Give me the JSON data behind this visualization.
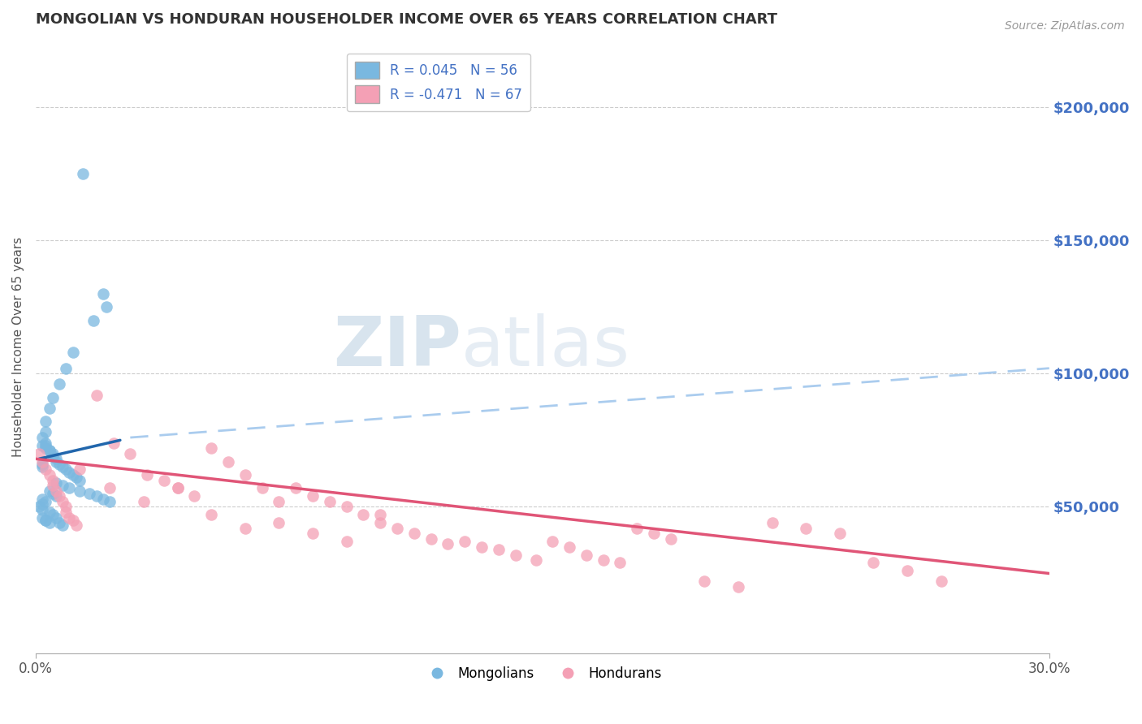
{
  "title": "MONGOLIAN VS HONDURAN HOUSEHOLDER INCOME OVER 65 YEARS CORRELATION CHART",
  "source": "Source: ZipAtlas.com",
  "ylabel": "Householder Income Over 65 years",
  "xlim": [
    0.0,
    0.3
  ],
  "ylim": [
    -5000,
    225000
  ],
  "ytick_values": [
    50000,
    100000,
    150000,
    200000
  ],
  "ytick_labels": [
    "$50,000",
    "$100,000",
    "$150,000",
    "$200,000"
  ],
  "mongolian_color": "#7ab8e0",
  "honduran_color": "#f4a0b5",
  "mongolian_line_color": "#2166ac",
  "honduran_line_color": "#e05577",
  "dashed_line_color": "#aaccee",
  "legend_text_color": "#4472c4",
  "title_color": "#333333",
  "right_axis_color": "#4472c4",
  "watermark_color": "#ccd9e8",
  "mongolian_R": 0.045,
  "mongolian_N": 56,
  "honduran_R": -0.471,
  "honduran_N": 67,
  "mongolian_scatter_x": [
    0.014,
    0.02,
    0.021,
    0.017,
    0.011,
    0.009,
    0.007,
    0.005,
    0.004,
    0.003,
    0.003,
    0.002,
    0.003,
    0.003,
    0.004,
    0.005,
    0.006,
    0.006,
    0.007,
    0.008,
    0.009,
    0.01,
    0.011,
    0.012,
    0.013,
    0.004,
    0.005,
    0.006,
    0.002,
    0.003,
    0.002,
    0.001,
    0.002,
    0.004,
    0.005,
    0.006,
    0.003,
    0.007,
    0.008,
    0.002,
    0.003,
    0.004,
    0.005,
    0.002,
    0.002,
    0.006,
    0.008,
    0.01,
    0.013,
    0.016,
    0.018,
    0.02,
    0.022,
    0.002,
    0.003,
    0.004
  ],
  "mongolian_scatter_y": [
    175000,
    130000,
    125000,
    120000,
    108000,
    102000,
    96000,
    91000,
    87000,
    82000,
    78000,
    76000,
    74000,
    73000,
    71000,
    69000,
    68000,
    67000,
    66000,
    65000,
    64000,
    63000,
    62000,
    61000,
    60000,
    56000,
    55000,
    54000,
    53000,
    52000,
    51000,
    50000,
    49000,
    48000,
    47000,
    46000,
    45000,
    44000,
    43000,
    73000,
    72000,
    71000,
    70000,
    66000,
    65000,
    59000,
    58000,
    57000,
    56000,
    55000,
    54000,
    53000,
    52000,
    46000,
    45000,
    44000
  ],
  "honduran_scatter_x": [
    0.001,
    0.002,
    0.003,
    0.004,
    0.005,
    0.005,
    0.006,
    0.007,
    0.008,
    0.009,
    0.009,
    0.01,
    0.011,
    0.012,
    0.018,
    0.023,
    0.028,
    0.033,
    0.038,
    0.042,
    0.047,
    0.052,
    0.057,
    0.062,
    0.067,
    0.072,
    0.077,
    0.082,
    0.087,
    0.092,
    0.097,
    0.102,
    0.107,
    0.112,
    0.117,
    0.122,
    0.127,
    0.132,
    0.137,
    0.142,
    0.148,
    0.153,
    0.158,
    0.163,
    0.168,
    0.173,
    0.178,
    0.183,
    0.188,
    0.198,
    0.208,
    0.218,
    0.228,
    0.238,
    0.248,
    0.258,
    0.268,
    0.013,
    0.022,
    0.032,
    0.042,
    0.052,
    0.062,
    0.072,
    0.082,
    0.092,
    0.102
  ],
  "honduran_scatter_y": [
    70000,
    67000,
    64000,
    62000,
    60000,
    58000,
    56000,
    54000,
    52000,
    50000,
    48000,
    46000,
    45000,
    43000,
    92000,
    74000,
    70000,
    62000,
    60000,
    57000,
    54000,
    72000,
    67000,
    62000,
    57000,
    52000,
    57000,
    54000,
    52000,
    50000,
    47000,
    44000,
    42000,
    40000,
    38000,
    36000,
    37000,
    35000,
    34000,
    32000,
    30000,
    37000,
    35000,
    32000,
    30000,
    29000,
    42000,
    40000,
    38000,
    22000,
    20000,
    44000,
    42000,
    40000,
    29000,
    26000,
    22000,
    64000,
    57000,
    52000,
    57000,
    47000,
    42000,
    44000,
    40000,
    37000,
    47000
  ],
  "mongo_line_x0": 0.001,
  "mongo_line_x1": 0.025,
  "mongo_line_y0": 68000,
  "mongo_line_y1": 75000,
  "dash_line_x0": 0.028,
  "dash_line_x1": 0.3,
  "dash_line_y0": 76000,
  "dash_line_y1": 102000,
  "hondu_line_x0": 0.0,
  "hondu_line_x1": 0.3,
  "hondu_line_y0": 68000,
  "hondu_line_y1": 25000
}
